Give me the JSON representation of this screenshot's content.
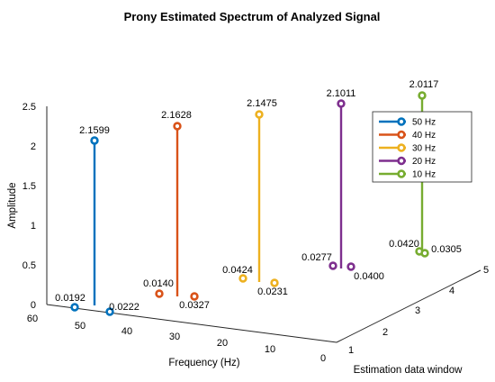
{
  "chart_data": {
    "type": "stem3",
    "title": "Prony Estimated Spectrum of Analyzed Signal",
    "xlabel": "Frequency (Hz)",
    "ylabel": "Estimation data window",
    "zlabel": "Amplitude",
    "x_ticks": [
      "60",
      "50",
      "40",
      "30",
      "20",
      "10",
      "0"
    ],
    "y_ticks": [
      "1",
      "2",
      "3",
      "4",
      "5"
    ],
    "z_ticks": [
      "0",
      "0.5",
      "1",
      "1.5",
      "2",
      "2.5"
    ],
    "legend_position": "top-right",
    "series": [
      {
        "name": "50 Hz",
        "color": "#0072BD",
        "labels": [
          "0.0192",
          "2.1599",
          "0.0222"
        ]
      },
      {
        "name": "40 Hz",
        "color": "#D95319",
        "labels": [
          "0.0140",
          "2.1628",
          "0.0327"
        ]
      },
      {
        "name": "30 Hz",
        "color": "#EDB120",
        "labels": [
          "0.0424",
          "2.1475",
          "0.0231"
        ]
      },
      {
        "name": "20 Hz",
        "color": "#7E2F8E",
        "labels": [
          "0.0277",
          "2.1011",
          "0.0400"
        ]
      },
      {
        "name": "10 Hz",
        "color": "#77AC30",
        "labels": [
          "0.0420",
          "2.0117",
          "0.0305"
        ]
      }
    ]
  }
}
